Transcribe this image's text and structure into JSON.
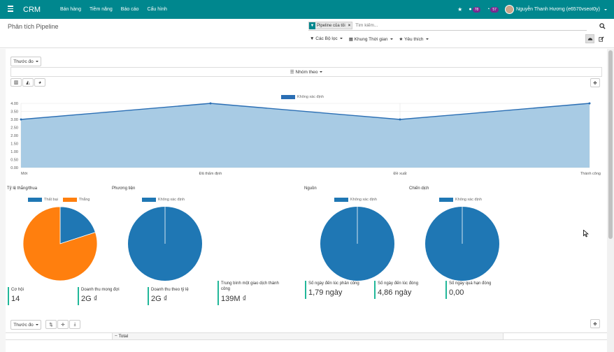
{
  "navbar": {
    "app_title": "CRM",
    "menu": [
      "Bán hàng",
      "Tiềm năng",
      "Báo cáo",
      "Cấu hình"
    ],
    "activity_count": "78",
    "message_count": "57",
    "user_name": "Nguyễn Thanh Hương (e6570vseot0y)"
  },
  "control_panel": {
    "breadcrumb": "Phân tích Pipeline",
    "facet_label": "Pipeline của tôi",
    "search_placeholder": "Tìm kiếm...",
    "filters_label": "Các Bộ lọc",
    "timeframe_label": "Khung Thời gian",
    "favorites_label": "Yêu thích"
  },
  "dashboard": {
    "measures_label": "Thước đo",
    "group_by_label": "Nhóm theo",
    "total_label": "Total"
  },
  "chart_data": [
    {
      "type": "area",
      "legend": [
        "Không xác định"
      ],
      "categories": [
        "Mới",
        "Đã thẩm định",
        "Đề xuất",
        "Thành công"
      ],
      "series": [
        {
          "name": "Không xác định",
          "values": [
            3,
            4,
            3,
            4
          ]
        }
      ],
      "y_ticks": [
        "0.00",
        "0.50",
        "1.00",
        "1.50",
        "2.00",
        "2.50",
        "3.00",
        "3.50",
        "4.00"
      ],
      "ylim": [
        0,
        4
      ],
      "grid": true,
      "legend_placement": "top",
      "colors": {
        "line": "#2a6eb4",
        "fill": "#a8cbe4"
      }
    },
    {
      "type": "pie",
      "title": "Tỷ lệ thắng/thua",
      "slices": [
        {
          "label": "Thất bại",
          "value": 1
        },
        {
          "label": "Thắng",
          "value": 4
        }
      ],
      "colors": [
        "#1f77b4",
        "#ff7f0e"
      ]
    },
    {
      "type": "pie",
      "title": "Phương tiện",
      "slices": [
        {
          "label": "Không xác định",
          "value": 1
        }
      ],
      "colors": [
        "#1f77b4"
      ]
    },
    {
      "type": "pie",
      "title": "Nguồn",
      "slices": [
        {
          "label": "Không xác định",
          "value": 1
        }
      ],
      "colors": [
        "#1f77b4"
      ]
    },
    {
      "type": "pie",
      "title": "Chiến dịch",
      "slices": [
        {
          "label": "Không xác định",
          "value": 1
        }
      ],
      "colors": [
        "#1f77b4"
      ]
    }
  ],
  "kpis": [
    {
      "label": "Cơ hội",
      "value": "14"
    },
    {
      "label": "Doanh thu mong đợi",
      "value": "2G ₫"
    },
    {
      "label": "Doanh thu theo tỷ lệ",
      "value": "2G ₫"
    },
    {
      "label": "Trung bình một giao dịch thành công",
      "value": "139M ₫"
    },
    {
      "label": "Số ngày đến lúc phân công",
      "value": "1,79 ngày"
    },
    {
      "label": "Số ngày đến lúc đóng",
      "value": "4,86 ngày"
    },
    {
      "label": "Số ngày quá hạn đóng",
      "value": "0,00"
    }
  ]
}
